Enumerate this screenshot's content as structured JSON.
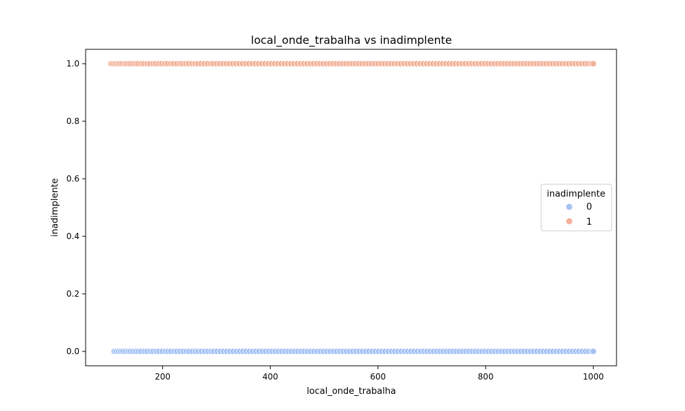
{
  "chart_data": {
    "type": "scatter",
    "title": "local_onde_trabalha vs inadimplente",
    "xlabel": "local_onde_trabalha",
    "ylabel": "inadimplente",
    "xlim": [
      57,
      1043
    ],
    "ylim": [
      -0.05,
      1.05
    ],
    "xticks": [
      200,
      400,
      600,
      800,
      1000
    ],
    "yticks": [
      0.0,
      0.2,
      0.4,
      0.6,
      0.8,
      1.0
    ],
    "xtick_labels": [
      "200",
      "400",
      "600",
      "800",
      "1000"
    ],
    "ytick_labels": [
      "0.0",
      "0.2",
      "0.4",
      "0.6",
      "0.8",
      "1.0"
    ],
    "grid": false,
    "legend": {
      "title": "inadimplente",
      "placement": "center-right",
      "entries": [
        "0",
        "1"
      ]
    },
    "series": [
      {
        "name": "0",
        "color": "#a4c2f4",
        "y": 0,
        "x": [
          110,
          114,
          118,
          122,
          126,
          131,
          136,
          140,
          145,
          150,
          155,
          160,
          166,
          171,
          177,
          182,
          188,
          193,
          199,
          205,
          210,
          215,
          221,
          226,
          232,
          238,
          244,
          249,
          255,
          261,
          266,
          272,
          278,
          284,
          290,
          295,
          301,
          307,
          313,
          319,
          325,
          331,
          337,
          343,
          349,
          355,
          361,
          367,
          373,
          379,
          385,
          391,
          397,
          403,
          409,
          415,
          421,
          427,
          433,
          439,
          445,
          451,
          457,
          463,
          469,
          475,
          481,
          487,
          493,
          499,
          505,
          511,
          517,
          523,
          529,
          535,
          541,
          547,
          553,
          559,
          565,
          571,
          577,
          583,
          589,
          595,
          601,
          607,
          613,
          619,
          625,
          631,
          637,
          643,
          649,
          655,
          661,
          667,
          673,
          679,
          685,
          691,
          697,
          703,
          709,
          715,
          721,
          727,
          733,
          739,
          745,
          751,
          757,
          763,
          769,
          775,
          781,
          787,
          793,
          799,
          805,
          811,
          817,
          823,
          829,
          835,
          841,
          847,
          853,
          859,
          865,
          871,
          877,
          883,
          889,
          895,
          901,
          907,
          913,
          919,
          925,
          931,
          937,
          943,
          949,
          955,
          961,
          967,
          973,
          979,
          985,
          991,
          997,
          1000
        ]
      },
      {
        "name": "1",
        "color": "#f2b29a",
        "y": 1,
        "x": [
          104,
          108,
          112,
          116,
          120,
          125,
          130,
          134,
          139,
          144,
          149,
          154,
          160,
          165,
          171,
          176,
          182,
          187,
          193,
          198,
          204,
          209,
          215,
          220,
          226,
          232,
          237,
          243,
          248,
          254,
          260,
          265,
          271,
          277,
          283,
          289,
          294,
          300,
          306,
          312,
          318,
          324,
          330,
          336,
          342,
          348,
          354,
          360,
          366,
          372,
          378,
          384,
          390,
          396,
          402,
          408,
          414,
          420,
          426,
          432,
          438,
          444,
          450,
          456,
          462,
          468,
          474,
          480,
          486,
          492,
          498,
          504,
          510,
          516,
          522,
          528,
          534,
          540,
          546,
          552,
          558,
          564,
          570,
          576,
          582,
          588,
          594,
          600,
          606,
          612,
          618,
          624,
          630,
          636,
          642,
          648,
          654,
          660,
          666,
          672,
          678,
          684,
          690,
          696,
          702,
          708,
          714,
          720,
          726,
          732,
          738,
          744,
          750,
          756,
          762,
          768,
          774,
          780,
          786,
          792,
          798,
          804,
          810,
          816,
          822,
          828,
          834,
          840,
          846,
          852,
          858,
          864,
          870,
          876,
          882,
          888,
          894,
          900,
          906,
          912,
          918,
          924,
          930,
          936,
          942,
          948,
          954,
          960,
          966,
          972,
          978,
          984,
          990,
          996,
          1000
        ]
      }
    ]
  }
}
